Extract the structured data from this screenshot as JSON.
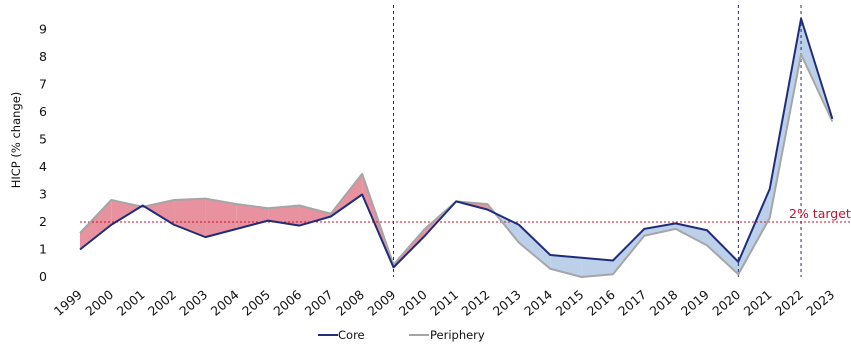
{
  "chart_data": {
    "type": "line",
    "title": "",
    "xlabel": "",
    "ylabel": "HICP (% change)",
    "ylim": [
      0,
      9.5
    ],
    "yticks": [
      "0",
      "1",
      "2",
      "3",
      "4",
      "5",
      "6",
      "7",
      "8",
      "9"
    ],
    "categories": [
      "1999",
      "2000",
      "2001",
      "2002",
      "2003",
      "2004",
      "2005",
      "2006",
      "2007",
      "2008",
      "2009",
      "2010",
      "2011",
      "2012",
      "2013",
      "2014",
      "2015",
      "2016",
      "2017",
      "2018",
      "2019",
      "2020",
      "2021",
      "2022",
      "2023"
    ],
    "series": [
      {
        "name": "Core",
        "color": "#1f2d7a",
        "values": [
          1.0,
          1.9,
          2.6,
          1.9,
          1.45,
          1.75,
          2.05,
          1.87,
          2.2,
          3.0,
          0.35,
          1.5,
          2.75,
          2.45,
          1.9,
          0.8,
          0.7,
          0.6,
          1.75,
          1.95,
          1.7,
          0.55,
          3.2,
          9.4,
          5.75
        ]
      },
      {
        "name": "Periphery",
        "color": "#a6a6a6",
        "values": [
          1.6,
          2.8,
          2.55,
          2.8,
          2.85,
          2.65,
          2.5,
          2.6,
          2.3,
          3.75,
          0.45,
          1.75,
          2.75,
          2.65,
          1.25,
          0.3,
          0.0,
          0.1,
          1.5,
          1.75,
          1.15,
          0.1,
          2.15,
          8.1,
          5.65
        ]
      }
    ],
    "fill_colors": {
      "periphery_above": "#e8919f",
      "core_above": "#bcd0ea"
    },
    "reference_line": {
      "value": 2,
      "label": "2% target",
      "color": "#c8102e"
    },
    "vertical_markers": [
      "2009",
      "2020",
      "2022"
    ],
    "marker_color": "#1f2d7a",
    "legend_position": "bottom-center",
    "grid": false
  }
}
